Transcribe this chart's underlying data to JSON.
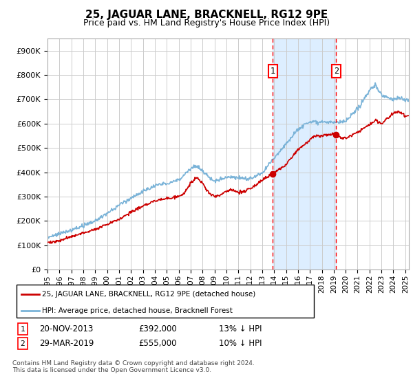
{
  "title": "25, JAGUAR LANE, BRACKNELL, RG12 9PE",
  "subtitle": "Price paid vs. HM Land Registry's House Price Index (HPI)",
  "ylabel_ticks": [
    "£0",
    "£100K",
    "£200K",
    "£300K",
    "£400K",
    "£500K",
    "£600K",
    "£700K",
    "£800K",
    "£900K"
  ],
  "ytick_values": [
    0,
    100000,
    200000,
    300000,
    400000,
    500000,
    600000,
    700000,
    800000,
    900000
  ],
  "ylim": [
    0,
    950000
  ],
  "xlim_start": 1995.0,
  "xlim_end": 2025.3,
  "hpi_color": "#7ab3d8",
  "price_color": "#cc0000",
  "span_color": "#ddeeff",
  "marker1_date": 2013.9,
  "marker2_date": 2019.2,
  "marker1_price": 392000,
  "marker2_price": 555000,
  "legend_label_price": "25, JAGUAR LANE, BRACKNELL, RG12 9PE (detached house)",
  "legend_label_hpi": "HPI: Average price, detached house, Bracknell Forest",
  "annot1_label": "1",
  "annot1_text": "20-NOV-2013",
  "annot1_price": "£392,000",
  "annot1_hpi": "13% ↓ HPI",
  "annot2_label": "2",
  "annot2_text": "29-MAR-2019",
  "annot2_price": "£555,000",
  "annot2_hpi": "10% ↓ HPI",
  "footer": "Contains HM Land Registry data © Crown copyright and database right 2024.\nThis data is licensed under the Open Government Licence v3.0.",
  "background_color": "#ffffff",
  "grid_color": "#cccccc"
}
